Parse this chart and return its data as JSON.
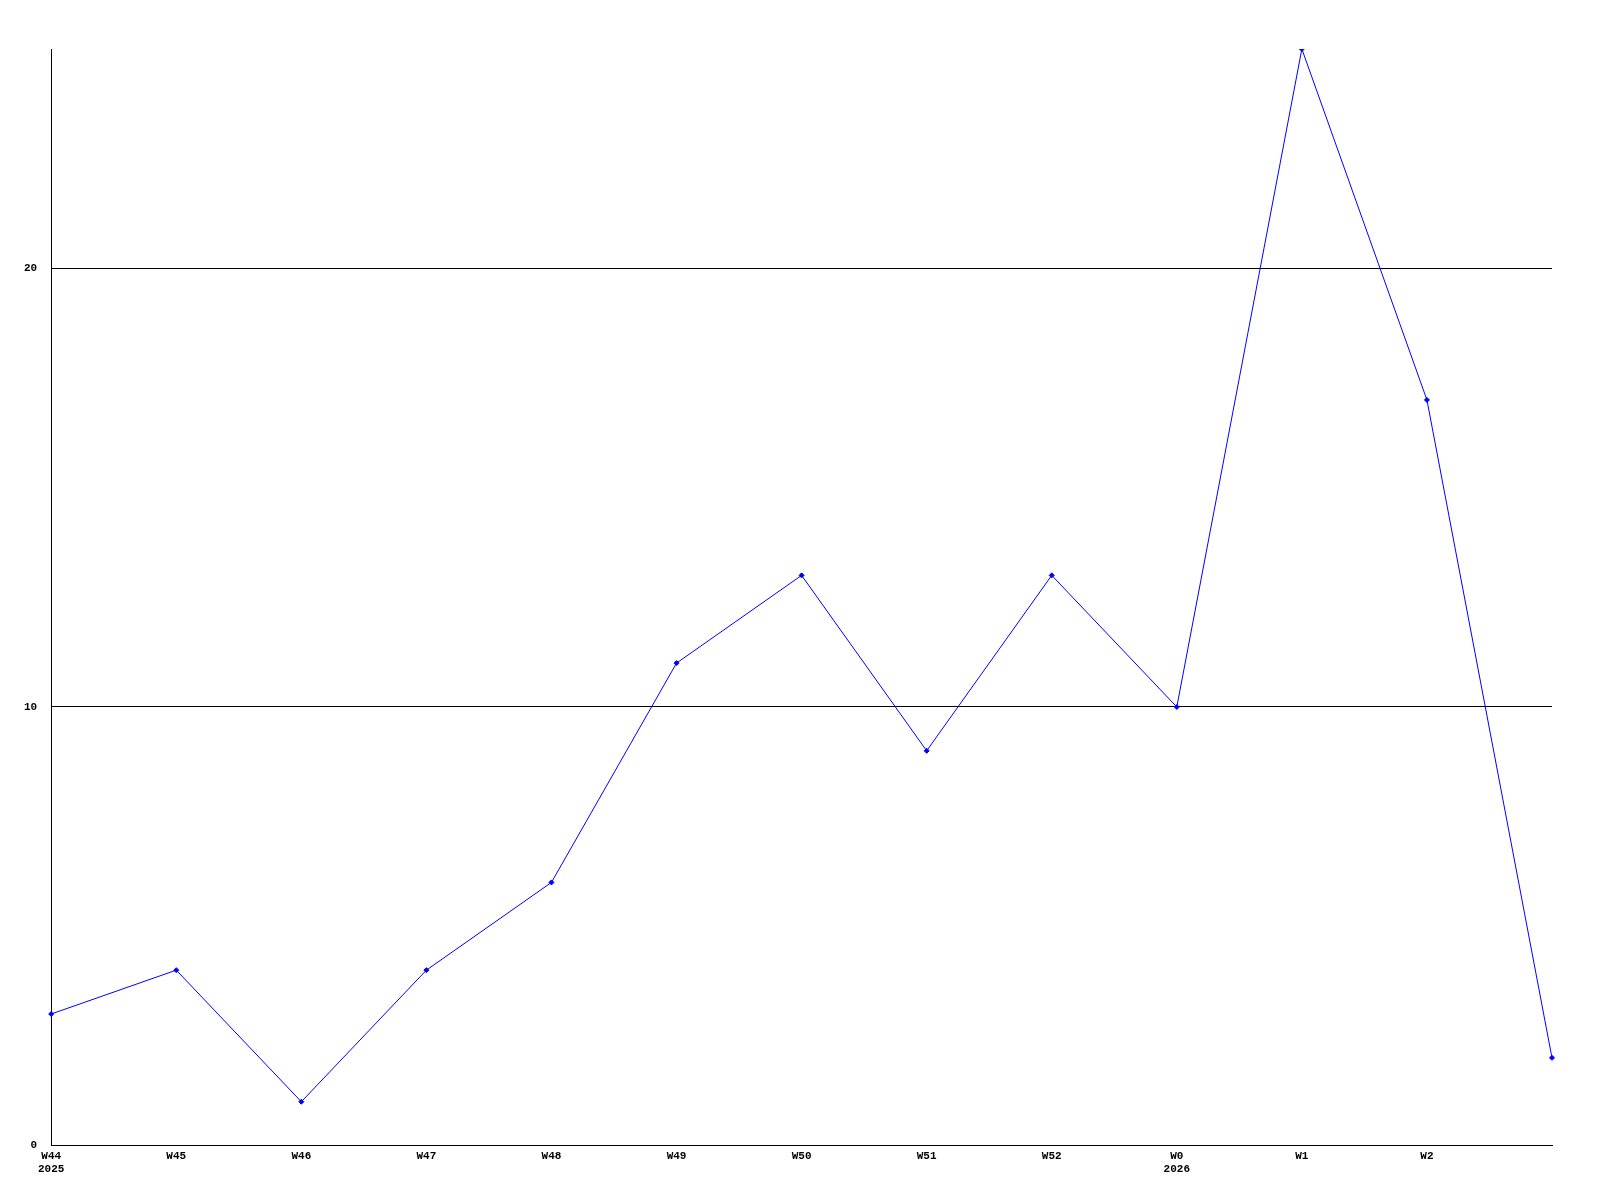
{
  "chart_data": {
    "type": "line",
    "categories": [
      "W44\n2025",
      "W45",
      "W46",
      "W47",
      "W48",
      "W49",
      "W50",
      "W51",
      "W52",
      "W0\n2026",
      "W1",
      "W2",
      null
    ],
    "series": [
      {
        "color": "#0000ff",
        "values": [
          3,
          4,
          1,
          4,
          6,
          11,
          13,
          9,
          13,
          10,
          25,
          17,
          2
        ]
      }
    ],
    "ylim": [
      0,
      25
    ],
    "yticks": [
      0,
      10,
      20
    ],
    "grid": "y",
    "legend": false,
    "marker": "diamond",
    "line_style": "solid"
  }
}
